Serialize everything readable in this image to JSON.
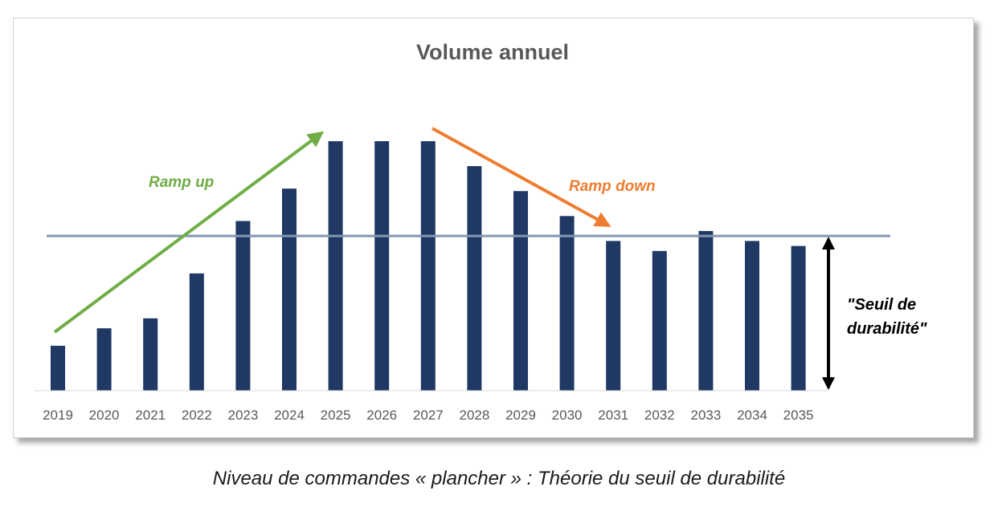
{
  "chart_data": {
    "type": "bar",
    "title": "Volume annuel",
    "categories": [
      "2019",
      "2020",
      "2021",
      "2022",
      "2023",
      "2024",
      "2025",
      "2026",
      "2027",
      "2028",
      "2029",
      "2030",
      "2031",
      "2032",
      "2033",
      "2034",
      "2035"
    ],
    "values": [
      18,
      25,
      29,
      47,
      68,
      81,
      100,
      100,
      100,
      90,
      80,
      70,
      60,
      56,
      64,
      60,
      58
    ],
    "ylim": [
      0,
      100
    ],
    "threshold": 62,
    "color": "#1f3864",
    "grid": false,
    "annotations": {
      "ramp_up": "Ramp up",
      "ramp_down": "Ramp down",
      "seuil": [
        "\"Seuil de",
        "durabilité\""
      ]
    },
    "colors": {
      "bar": "#1f3864",
      "threshold_line": "#8497b0",
      "ramp_up": "#70ad47",
      "ramp_down": "#ed7d31",
      "axis_label": "#595959"
    }
  },
  "caption": "Niveau de commandes « plancher » : Théorie du seuil de durabilité"
}
